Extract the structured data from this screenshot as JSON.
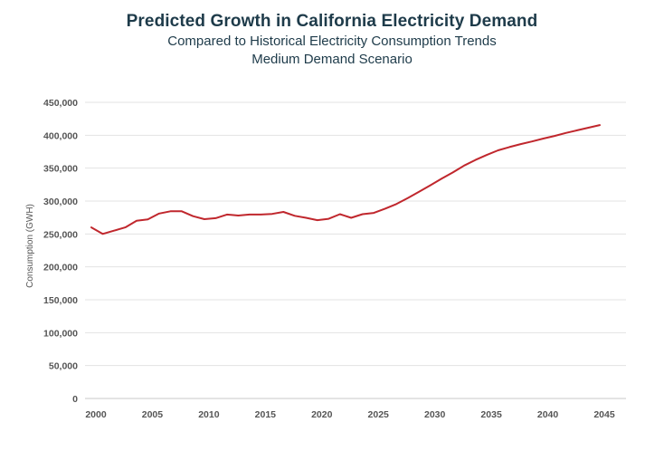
{
  "chart_data": {
    "type": "line",
    "title": "Predicted Growth in California Electricity Demand",
    "subtitle": [
      "Compared to Historical Electricity Consumption Trends",
      "Medium Demand Scenario"
    ],
    "xlabel": "",
    "ylabel": "Consumption (GWH)",
    "xlim": [
      2000,
      2045
    ],
    "ylim": [
      0,
      450000
    ],
    "x_ticks": [
      2000,
      2005,
      2010,
      2015,
      2020,
      2025,
      2030,
      2035,
      2040,
      2045
    ],
    "y_ticks": [
      0,
      50000,
      100000,
      150000,
      200000,
      250000,
      300000,
      350000,
      400000,
      450000
    ],
    "y_tick_labels": [
      "0",
      "50,000",
      "100,000",
      "150,000",
      "200,000",
      "250,000",
      "300,000",
      "350,000",
      "400,000",
      "450,000"
    ],
    "grid": "horizontal",
    "line_color": "#c0272d",
    "series": [
      {
        "x": [
          1999.6,
          2000.6,
          2001.6,
          2002.6,
          2003.6,
          2004.6,
          2005.6,
          2006.6,
          2007.6,
          2008.6,
          2009.6,
          2010.6,
          2011.6,
          2012.6,
          2013.6,
          2014.6,
          2015.6,
          2016.6,
          2017.6,
          2018.6,
          2019.6,
          2020.6,
          2021.6,
          2022.6,
          2023.6,
          2024.6,
          2025.6,
          2026.6,
          2027.6,
          2028.6,
          2029.6,
          2030.6,
          2031.6,
          2032.6,
          2033.6,
          2034.6,
          2035.6,
          2036.6,
          2037.6,
          2038.6,
          2039.6,
          2040.6,
          2041.6,
          2042.6,
          2043.6,
          2044.6
        ],
        "values": [
          260000,
          250000,
          255000,
          260000,
          270000,
          272000,
          281000,
          284500,
          284500,
          277000,
          272500,
          274000,
          279500,
          278000,
          279500,
          279500,
          280500,
          283500,
          277500,
          274500,
          271000,
          273000,
          280000,
          274500,
          280000,
          282000,
          288500,
          295500,
          304500,
          314000,
          324000,
          334000,
          343500,
          354000,
          362500,
          370000,
          377000,
          382000,
          386500,
          390500,
          395000,
          399000,
          403500,
          407500,
          411500,
          415500
        ]
      }
    ]
  }
}
